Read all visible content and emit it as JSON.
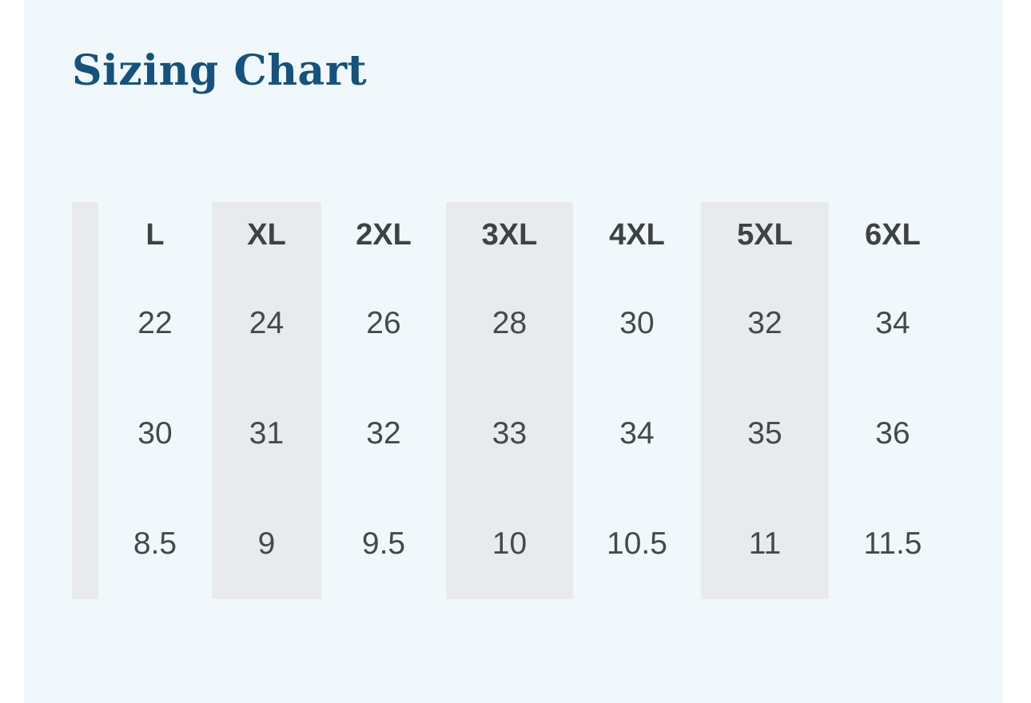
{
  "page": {
    "title": "Sizing Chart"
  },
  "colors": {
    "page_margin": "#FFFFFF",
    "background": "#F1F8FB",
    "stripe": "#E8EAEB",
    "title": "#15527D",
    "header_text": "#3F4245",
    "cell_text": "#46494C"
  },
  "table": {
    "columns": [
      "",
      "L",
      "XL",
      "2XL",
      "3XL",
      "4XL",
      "5XL",
      "6XL"
    ],
    "rows": [
      [
        "",
        "22",
        "24",
        "26",
        "28",
        "30",
        "32",
        "34"
      ],
      [
        "",
        "30",
        "31",
        "32",
        "33",
        "34",
        "35",
        "36"
      ],
      [
        "",
        "8.5",
        "9",
        "9.5",
        "10",
        "10.5",
        "11",
        "11.5"
      ]
    ]
  },
  "chart_data": {
    "type": "table",
    "title": "Sizing Chart",
    "categories": [
      "L",
      "XL",
      "2XL",
      "3XL",
      "4XL",
      "5XL",
      "6XL"
    ],
    "series": [
      {
        "name": "",
        "values": [
          22,
          24,
          26,
          28,
          30,
          32,
          34
        ]
      },
      {
        "name": "",
        "values": [
          30,
          31,
          32,
          33,
          34,
          35,
          36
        ]
      },
      {
        "name": "",
        "values": [
          8.5,
          9,
          9.5,
          10,
          10.5,
          11,
          11.5
        ]
      }
    ],
    "layout": {
      "striped_columns": [
        "XL",
        "3XL",
        "5XL"
      ],
      "grid": false,
      "legend": "none"
    }
  }
}
